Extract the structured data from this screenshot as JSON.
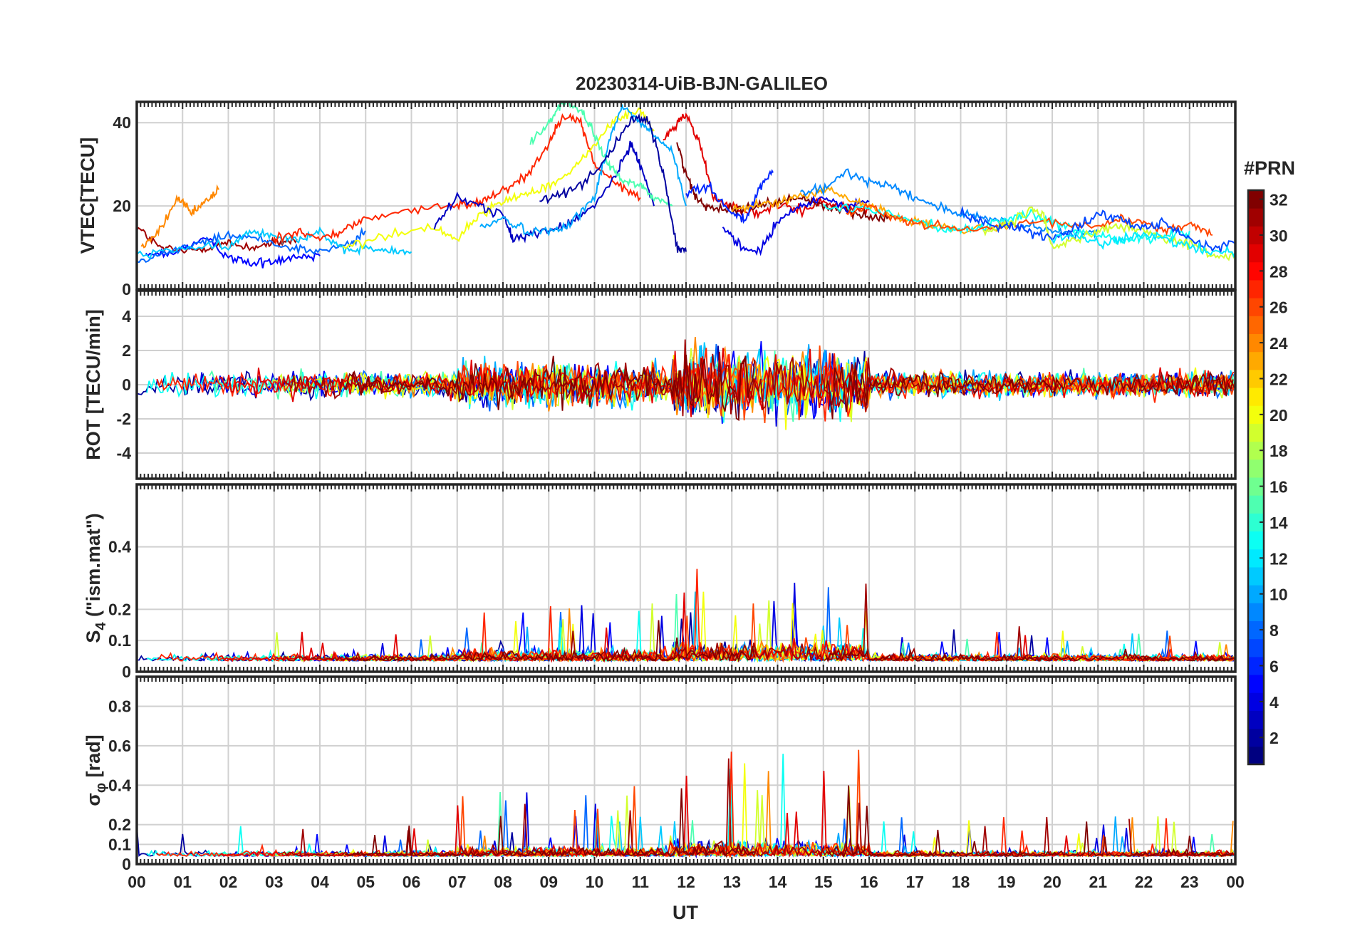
{
  "chart_data": {
    "type": "line",
    "title": "20230314-UiB-BJN-GALILEO",
    "xlabel": "UT",
    "x_ticks": [
      "00",
      "01",
      "02",
      "03",
      "04",
      "05",
      "06",
      "07",
      "08",
      "09",
      "10",
      "11",
      "12",
      "13",
      "14",
      "15",
      "16",
      "17",
      "18",
      "19",
      "20",
      "21",
      "22",
      "23",
      "00"
    ],
    "xlim_hours": [
      0,
      24
    ],
    "grid": true,
    "colorbar": {
      "title": "#PRN",
      "range": [
        1,
        32
      ],
      "ticks": [
        "2",
        "4",
        "6",
        "8",
        "10",
        "12",
        "14",
        "16",
        "18",
        "20",
        "22",
        "24",
        "26",
        "28",
        "30",
        "32"
      ],
      "colormap": "jet",
      "placement": "right"
    },
    "panels": [
      {
        "ylabel": "VTEC[TECU]",
        "ylim": [
          0,
          45
        ],
        "y_ticks": [
          "0",
          "20",
          "40"
        ],
        "series": [
          {
            "prn": 31,
            "x": [
              0,
              0.5,
              1,
              1.5,
              2,
              2.5,
              3,
              3.5
            ],
            "y": [
              15,
              10,
              9,
              10,
              11,
              10,
              11,
              12
            ]
          },
          {
            "prn": 24,
            "x": [
              0.1,
              0.5,
              0.9,
              1.2,
              1.5,
              1.8
            ],
            "y": [
              10,
              14,
              22,
              18,
              21,
              24
            ]
          },
          {
            "prn": 5,
            "x": [
              0.2,
              0.8,
              1.5,
              2,
              2.5,
              3,
              3.5,
              4
            ],
            "y": [
              8,
              9,
              12,
              8,
              6,
              7,
              8,
              8
            ]
          },
          {
            "prn": 8,
            "x": [
              0,
              0.7,
              1.4,
              2,
              2.7,
              3.4,
              4,
              4.7,
              5
            ],
            "y": [
              7,
              9,
              11,
              13,
              12,
              10,
              9,
              11,
              14
            ]
          },
          {
            "prn": 11,
            "x": [
              0,
              1,
              2,
              2.5,
              3,
              3.5,
              4,
              4.5,
              5,
              5.5,
              6
            ],
            "y": [
              8,
              10,
              10,
              14,
              13,
              12,
              14,
              9,
              10,
              9,
              9
            ]
          },
          {
            "prn": 27,
            "x": [
              3,
              3.5,
              4,
              4.5,
              5,
              6,
              7,
              7.5,
              8,
              8.5,
              9,
              9.3,
              9.7,
              10,
              10.5,
              11
            ],
            "y": [
              12,
              14,
              12,
              14,
              17,
              19,
              20,
              21,
              24,
              27,
              35,
              42,
              40,
              30,
              25,
              22
            ]
          },
          {
            "prn": 20,
            "x": [
              4.5,
              5.5,
              6.5,
              7,
              7.5,
              8,
              8.5,
              9,
              9.5,
              10,
              10.5,
              11,
              11.3
            ],
            "y": [
              10,
              13,
              15,
              12,
              18,
              21,
              23,
              25,
              28,
              35,
              41,
              43,
              38
            ]
          },
          {
            "prn": 3,
            "x": [
              6.5,
              7,
              7.5,
              8,
              8.2,
              8.5,
              9,
              9.5,
              10,
              10.5,
              10.8,
              11,
              11.3
            ],
            "y": [
              15,
              22,
              20,
              18,
              12,
              13,
              14,
              16,
              20,
              28,
              35,
              30,
              20
            ]
          },
          {
            "prn": 15,
            "x": [
              8.6,
              9,
              9.3,
              9.7,
              10,
              10.3,
              10.6,
              11,
              11.3,
              11.7
            ],
            "y": [
              35,
              40,
              45,
              43,
              37,
              30,
              26,
              25,
              22,
              20
            ]
          },
          {
            "prn": 10,
            "x": [
              7.5,
              8,
              8.5,
              9,
              9.5,
              10,
              10.3,
              10.6,
              11,
              11.3,
              11.7,
              12
            ],
            "y": [
              15,
              17,
              14,
              14,
              16,
              22,
              35,
              44,
              40,
              37,
              33,
              20
            ]
          },
          {
            "prn": 2,
            "x": [
              8.8,
              9.3,
              9.8,
              10.3,
              10.8,
              11.2,
              11.5,
              11.8,
              12
            ],
            "y": [
              21,
              23,
              26,
              32,
              41,
              40,
              28,
              10,
              9
            ]
          },
          {
            "prn": 29,
            "x": [
              11.5,
              11.8,
              12,
              12.3,
              12.6,
              13,
              13.5,
              14,
              14.5,
              15,
              15.5,
              16
            ],
            "y": [
              36,
              40,
              42,
              35,
              22,
              20,
              18,
              20,
              19,
              21,
              20,
              19
            ]
          },
          {
            "prn": 32,
            "x": [
              11.8,
              12,
              12.2,
              12.5,
              13,
              13.5,
              14,
              14.5,
              15,
              15.5,
              16,
              16.5
            ],
            "y": [
              35,
              28,
              22,
              20,
              19,
              20,
              21,
              22,
              20,
              19,
              17,
              18
            ]
          },
          {
            "prn": 6,
            "x": [
              12,
              12.5,
              13,
              13.3,
              13.6,
              13.9
            ],
            "y": [
              23,
              25,
              18,
              17,
              24,
              28
            ]
          },
          {
            "prn": 4,
            "x": [
              12.8,
              13.2,
              13.6,
              14,
              14.5,
              15,
              15.5,
              16
            ],
            "y": [
              15,
              10,
              9,
              16,
              20,
              22,
              20,
              21
            ]
          },
          {
            "prn": 23,
            "x": [
              13,
              13.5,
              14,
              14.5,
              15,
              15.5,
              16,
              16.5,
              17,
              17.5,
              18,
              19
            ],
            "y": [
              19,
              20,
              21,
              22,
              24,
              22,
              20,
              18,
              16,
              15,
              14,
              15
            ]
          },
          {
            "prn": 9,
            "x": [
              14.5,
              15,
              15.5,
              16,
              16.5,
              17,
              17.5,
              18,
              18.5,
              19,
              19.5,
              20,
              20.5,
              21
            ],
            "y": [
              23,
              24,
              28,
              26,
              25,
              22,
              20,
              18,
              17,
              16,
              15,
              14,
              13,
              14
            ]
          },
          {
            "prn": 13,
            "x": [
              15,
              16,
              17,
              17.5,
              18,
              18.5,
              19,
              19.5,
              20,
              20.5,
              21,
              21.5,
              22,
              22.5,
              23
            ],
            "y": [
              20,
              19,
              17,
              15,
              14,
              15,
              17,
              18,
              16,
              14,
              13,
              12,
              12,
              13,
              14
            ]
          },
          {
            "prn": 26,
            "x": [
              15.5,
              16,
              16.5,
              17,
              18,
              19,
              20,
              21,
              21.5,
              22,
              22.5,
              23,
              23.5
            ],
            "y": [
              18,
              20,
              17,
              16,
              14,
              15,
              16,
              15,
              17,
              16,
              14,
              16,
              13
            ]
          },
          {
            "prn": 19,
            "x": [
              18.5,
              19,
              19.5,
              19.8,
              20,
              20.5,
              21,
              21.5,
              22,
              22.5,
              23,
              23.5,
              24
            ],
            "y": [
              14,
              15,
              19,
              18,
              10,
              12,
              14,
              15,
              14,
              12,
              11,
              8,
              8
            ]
          },
          {
            "prn": 7,
            "x": [
              18,
              18.5,
              19,
              19.5,
              20,
              20.5,
              21,
              21.5,
              22,
              22.5,
              23,
              23.5,
              24
            ],
            "y": [
              18,
              16,
              15,
              14,
              12,
              15,
              18,
              17,
              15,
              16,
              12,
              10,
              11
            ]
          },
          {
            "prn": 12,
            "x": [
              20,
              20.5,
              21,
              21.5,
              22,
              22.5,
              23,
              23.5,
              24
            ],
            "y": [
              12,
              13,
              11,
              12,
              13,
              12,
              10,
              9,
              9
            ]
          }
        ]
      },
      {
        "ylabel": "ROT [TECU/min]",
        "ylim": [
          -5.5,
          5.5
        ],
        "y_ticks": [
          "-4",
          "-2",
          "0",
          "2",
          "4"
        ]
      },
      {
        "ylabel": "S4 (\"ism.mat\")",
        "ylim": [
          0,
          0.6
        ],
        "y_ticks": [
          "0",
          "0.1",
          "0.2",
          "0.4"
        ]
      },
      {
        "ylabel": "σφ [rad]",
        "ylim": [
          0,
          0.95
        ],
        "y_ticks": [
          "0",
          "0.1",
          "0.2",
          "0.4",
          "0.6",
          "0.8"
        ]
      }
    ]
  }
}
